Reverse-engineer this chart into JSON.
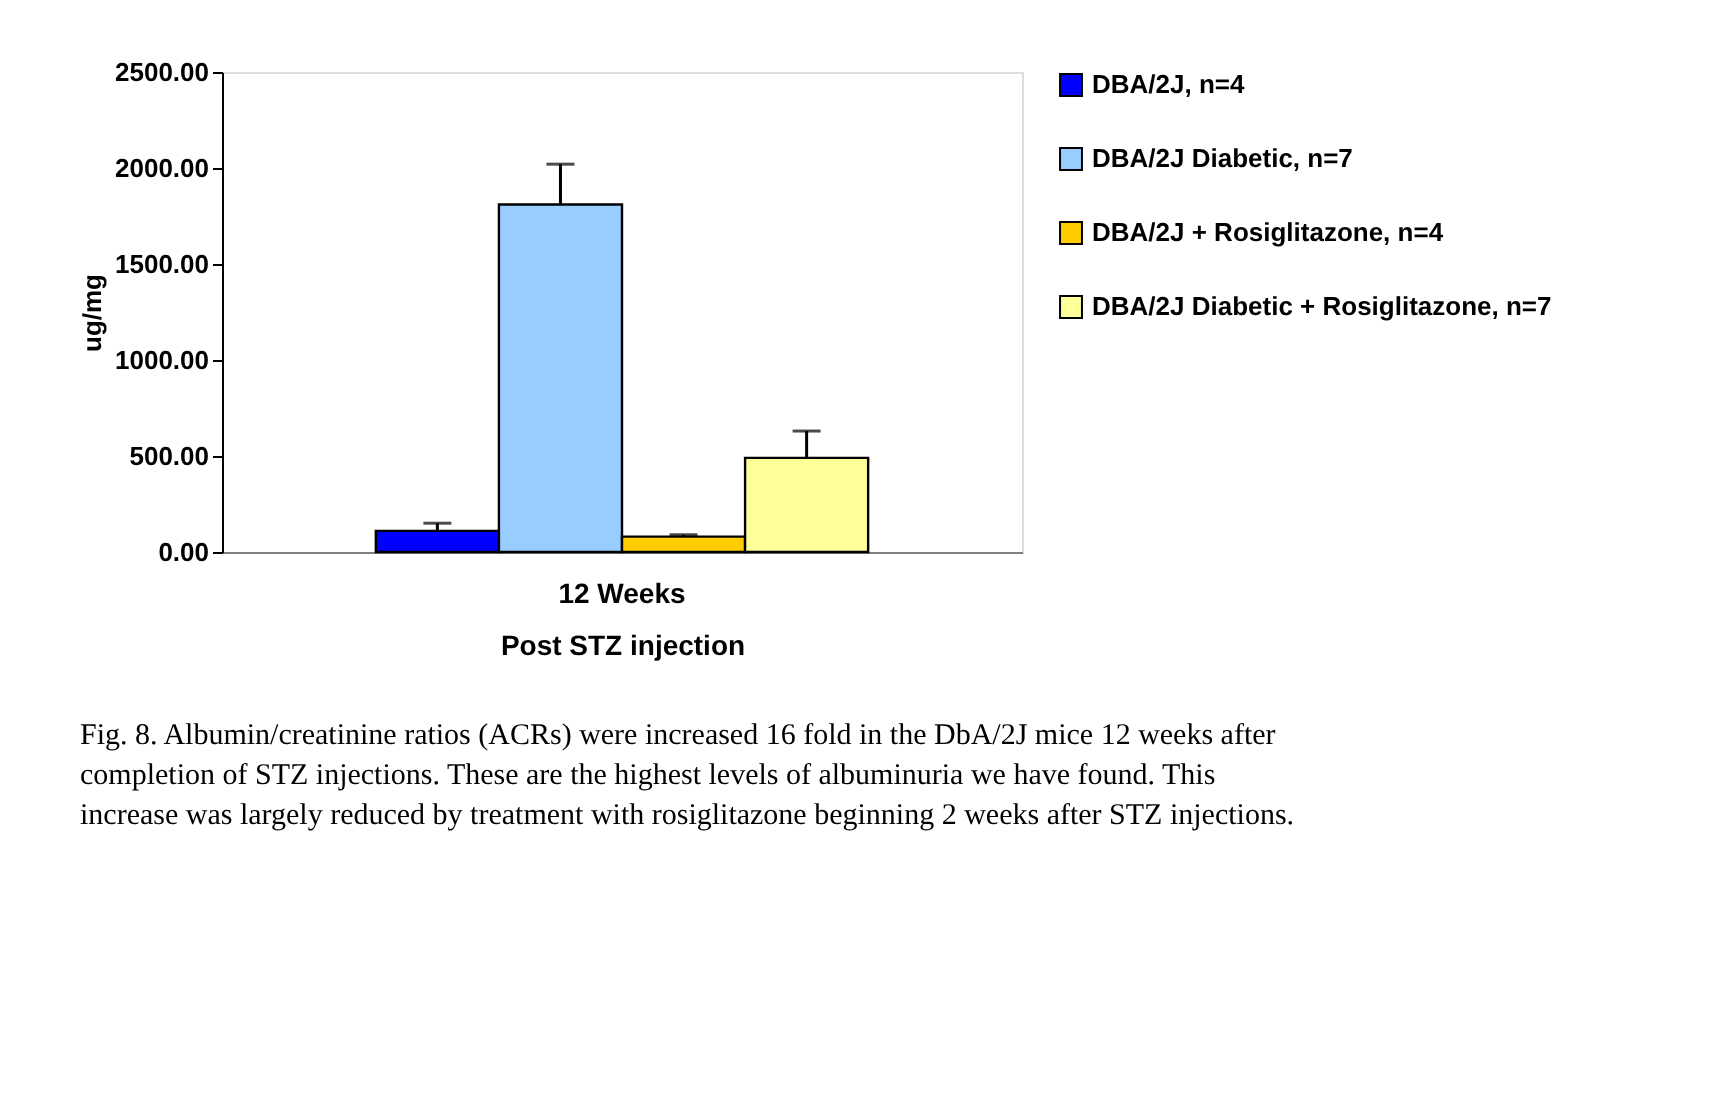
{
  "chart_data": {
    "type": "bar",
    "xlabel": "Post STZ injection",
    "ylabel": "ug/mg",
    "categories": [
      "12 Weeks"
    ],
    "series": [
      {
        "name": "DBA/2J, n=4",
        "color": "#0000ff",
        "values": [
          110
        ],
        "errors": [
          [
            110,
            150
          ]
        ]
      },
      {
        "name": "DBA/2J Diabetic, n=7",
        "color": "#99ccff",
        "values": [
          1810
        ],
        "errors": [
          [
            1810,
            2020
          ]
        ]
      },
      {
        "name": "DBA/2J + Rosiglitazone, n=4",
        "color": "#ffcc00",
        "values": [
          80
        ],
        "errors": [
          [
            80,
            90
          ]
        ]
      },
      {
        "name": "DBA/2J Diabetic + Rosiglitazone, n=7",
        "color": "#ffff99",
        "values": [
          490
        ],
        "errors": [
          [
            490,
            630
          ]
        ]
      }
    ],
    "ylim": [
      0,
      2500
    ],
    "yticks": [
      {
        "value": 0,
        "label": "0.00"
      },
      {
        "value": 500,
        "label": "500.00"
      },
      {
        "value": 1000,
        "label": "1000.00"
      },
      {
        "value": 1500,
        "label": "1500.00"
      },
      {
        "value": 2000,
        "label": "2000.00"
      },
      {
        "value": 2500,
        "label": "2500.00"
      }
    ],
    "grid": false,
    "legend": "right",
    "annotations": [
      "Fig. 8. Albumin/creatinine ratios (ACRs) were increased 16 fold in the DbA/2J mice 12 weeks after completion of STZ injections. These are the highest levels of albuminuria we have found. This increase was largely reduced by treatment with rosiglitazone beginning 2 weeks after STZ injections."
    ]
  }
}
